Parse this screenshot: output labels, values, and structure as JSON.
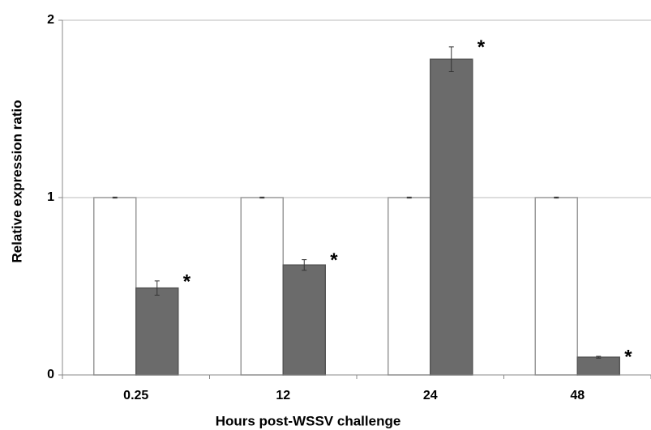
{
  "chart_data": {
    "type": "bar",
    "x_label": "Hours post-WSSV challenge",
    "y_label": "Relative expression ratio",
    "categories": [
      "0.25",
      "12",
      "24",
      "48"
    ],
    "series": [
      {
        "color": "#ffffff",
        "values": [
          1,
          1,
          1,
          1
        ],
        "errors": [
          0.003,
          0.003,
          0.003,
          0.003
        ]
      },
      {
        "color": "#6b6b6b",
        "values": [
          0.49,
          0.62,
          1.78,
          0.1
        ],
        "errors": [
          0.04,
          0.03,
          0.07,
          0.005
        ],
        "labels": [
          "*",
          "*",
          "*",
          "*"
        ]
      }
    ],
    "ylim": [
      0,
      2
    ],
    "yticks": [
      0,
      1,
      2
    ],
    "grid": true
  }
}
